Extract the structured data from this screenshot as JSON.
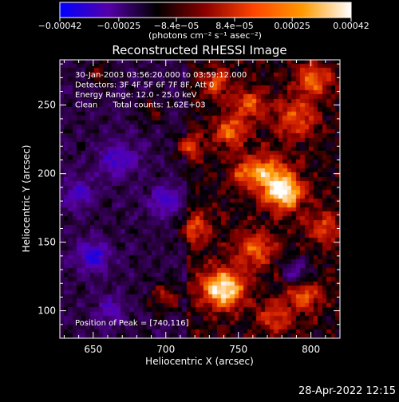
{
  "chart_data": {
    "type": "heatmap",
    "title": "Reconstructed RHESSI Image",
    "xlabel": "Heliocentric X (arcsec)",
    "ylabel": "Heliocentric Y (arcsec)",
    "xlim": [
      627,
      820
    ],
    "ylim": [
      80,
      283
    ],
    "x_ticks": [
      650,
      700,
      750,
      800
    ],
    "y_ticks": [
      100,
      150,
      200,
      250
    ],
    "colorbar": {
      "tick_labels": [
        "−0.00042",
        "−0.00025",
        "−8.4e−05",
        "8.4e−05",
        "0.00025",
        "0.00042"
      ],
      "tick_values": [
        -0.00042,
        -0.00025,
        -8.4e-05,
        8.4e-05,
        0.00025,
        0.00042
      ],
      "range": [
        -0.00042,
        0.00042
      ],
      "units_label": "(photons cm⁻² s⁻¹ asec⁻²)",
      "colors": [
        "#0000ff",
        "#5500aa",
        "#000000",
        "#8b0000",
        "#ff4500",
        "#ff9900",
        "#ffffff"
      ]
    },
    "annotations": [
      "30-Jan-2003 03:56:20.000 to 03:59:12.000",
      "Detectors: 3F 4F 5F 6F 7F 8F, Att 0",
      "Energy Range: 12.0 - 25.0 keV",
      "Clean      Total counts: 1.62E+03"
    ],
    "peak_label": "Position of Peak = [740,116]",
    "peak_position": [
      740,
      116
    ],
    "sources": [
      {
        "x": 740,
        "y": 116,
        "amp": 1.0,
        "sigma": 10
      },
      {
        "x": 782,
        "y": 186,
        "amp": 0.95,
        "sigma": 9
      },
      {
        "x": 762,
        "y": 145,
        "amp": 0.55,
        "sigma": 9
      },
      {
        "x": 802,
        "y": 268,
        "amp": 0.6,
        "sigma": 8
      },
      {
        "x": 745,
        "y": 230,
        "amp": 0.55,
        "sigma": 8
      },
      {
        "x": 770,
        "y": 200,
        "amp": 0.6,
        "sigma": 10
      },
      {
        "x": 720,
        "y": 160,
        "amp": 0.45,
        "sigma": 8
      },
      {
        "x": 735,
        "y": 266,
        "amp": 0.45,
        "sigma": 7
      },
      {
        "x": 790,
        "y": 240,
        "amp": 0.5,
        "sigma": 10
      },
      {
        "x": 758,
        "y": 250,
        "amp": 0.5,
        "sigma": 8
      },
      {
        "x": 715,
        "y": 220,
        "amp": 0.45,
        "sigma": 7
      },
      {
        "x": 795,
        "y": 110,
        "amp": 0.5,
        "sigma": 8
      },
      {
        "x": 810,
        "y": 160,
        "amp": 0.45,
        "sigma": 8
      },
      {
        "x": 700,
        "y": 110,
        "amp": 0.4,
        "sigma": 8
      },
      {
        "x": 775,
        "y": 95,
        "amp": 0.45,
        "sigma": 8
      },
      {
        "x": 655,
        "y": 272,
        "amp": 0.35,
        "sigma": 6
      },
      {
        "x": 690,
        "y": 245,
        "amp": 0.3,
        "sigma": 6
      },
      {
        "x": 755,
        "y": 200,
        "amp": 0.4,
        "sigma": 7
      }
    ],
    "negative_sources": [
      {
        "x": 650,
        "y": 140,
        "amp": 0.6,
        "sigma": 8
      },
      {
        "x": 668,
        "y": 210,
        "amp": 0.5,
        "sigma": 9
      },
      {
        "x": 640,
        "y": 185,
        "amp": 0.45,
        "sigma": 8
      },
      {
        "x": 790,
        "y": 128,
        "amp": 0.5,
        "sigma": 6
      },
      {
        "x": 700,
        "y": 180,
        "amp": 0.45,
        "sigma": 8
      },
      {
        "x": 662,
        "y": 100,
        "amp": 0.4,
        "sigma": 7
      }
    ]
  },
  "footer": {
    "timestamp": "28-Apr-2022 12:15"
  }
}
